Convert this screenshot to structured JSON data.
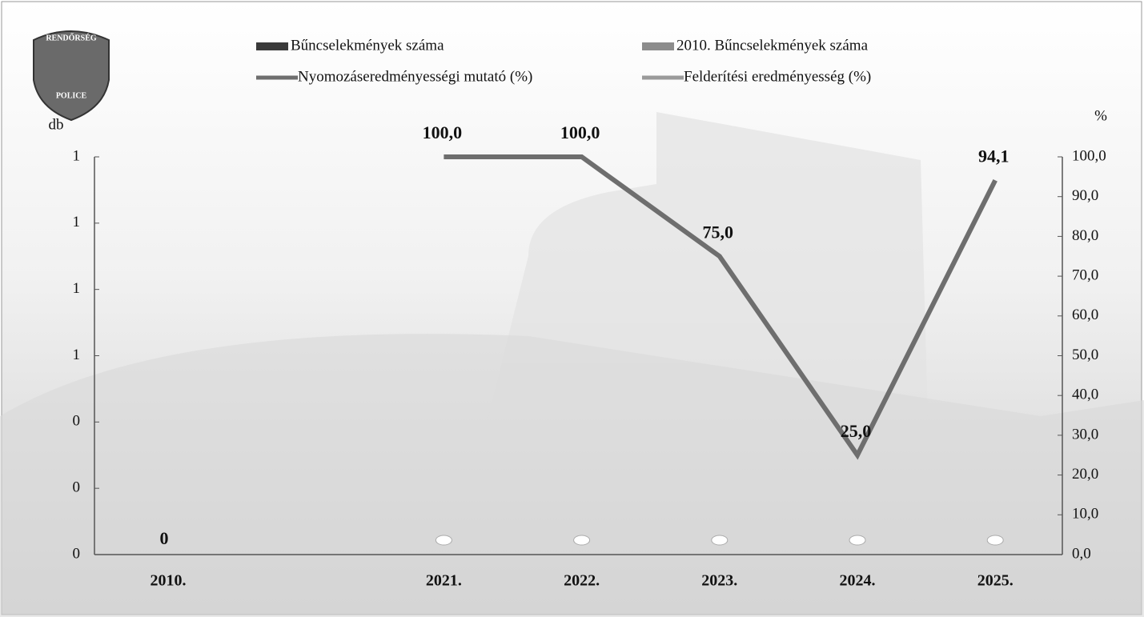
{
  "logo": {
    "top": "RENDŐRSÉG",
    "bottom": "POLICE"
  },
  "chart_data": {
    "type": "bar-line",
    "ylabel": "db",
    "y2label": "%",
    "categories": [
      "2010.",
      null,
      "2021.",
      "2022.",
      "2023.",
      "2024.",
      "2025."
    ],
    "ylim": [
      0,
      1.2
    ],
    "yticks": [
      0,
      {
        "value": 0.2,
        "label": "0"
      },
      {
        "value": 0.4,
        "label": "0"
      },
      {
        "value": 0.6,
        "label": "1"
      },
      {
        "value": 0.8,
        "label": "1"
      },
      1,
      {
        "value": 1.2,
        "label": "1"
      }
    ],
    "y2lim": [
      0,
      100
    ],
    "y2ticks": [
      {
        "value": 0,
        "label": "0,0"
      },
      {
        "value": 10,
        "label": "10,0"
      },
      {
        "value": 20,
        "label": "20,0"
      },
      {
        "value": 30,
        "label": "30,0"
      },
      {
        "value": 40,
        "label": "40,0"
      },
      {
        "value": 50,
        "label": "50,0"
      },
      {
        "value": 60,
        "label": "60,0"
      },
      {
        "value": 70,
        "label": "70,0"
      },
      {
        "value": 80,
        "label": "80,0"
      },
      {
        "value": 90,
        "label": "90,0"
      },
      {
        "value": 100,
        "label": "100,0"
      }
    ],
    "series": [
      {
        "name": "Bűncselekmények száma",
        "kind": "bar",
        "color": "#3a3a3a",
        "values": [
          null,
          null,
          0,
          0,
          0,
          0,
          0
        ]
      },
      {
        "name": "2010. Bűncselekmények száma",
        "kind": "bar",
        "color": "#8c8c8c",
        "values": [
          0,
          null,
          null,
          null,
          null,
          null,
          null
        ]
      },
      {
        "name": "Nyomozáseredményességi mutató (%)",
        "kind": "line",
        "axis": "y2",
        "color": "#6e6e6e",
        "values": [
          null,
          null,
          100,
          100,
          75,
          25,
          94.1
        ],
        "value_labels": [
          null,
          null,
          "100,0",
          "100,0",
          "75,0",
          "25,0",
          "94,1"
        ]
      },
      {
        "name": "Felderítési eredményesség (%)",
        "kind": "line",
        "axis": "y2",
        "color": "#9a9a9a",
        "values": [
          null,
          null,
          null,
          null,
          null,
          null,
          null
        ]
      }
    ]
  }
}
